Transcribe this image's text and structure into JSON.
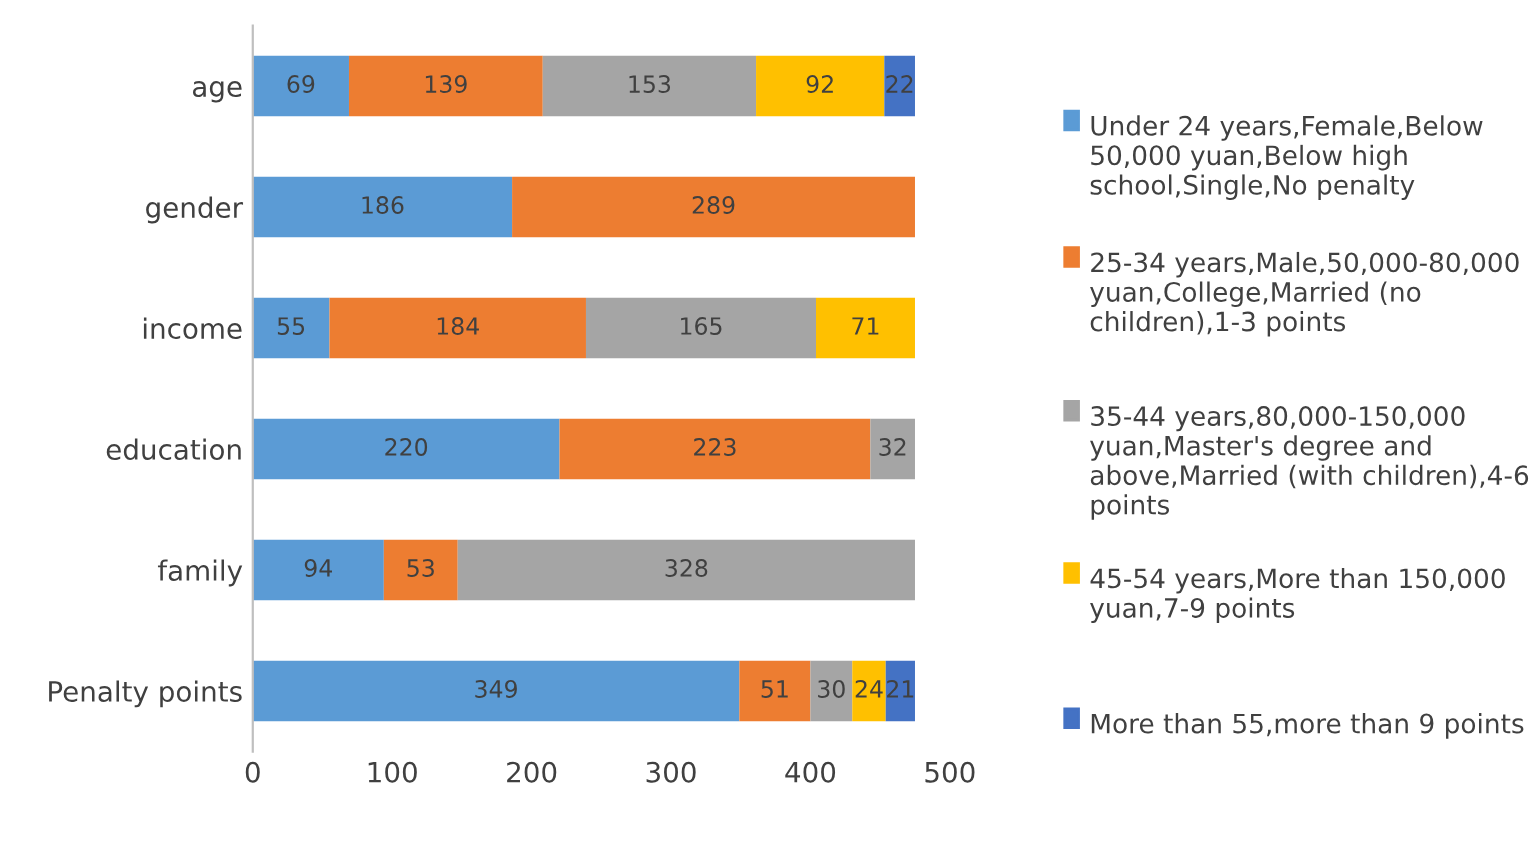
{
  "chart_data": {
    "type": "bar",
    "orientation": "horizontal",
    "stacked": true,
    "data_labels": true,
    "legend": "right",
    "grid": false,
    "categories": [
      "age",
      "gender",
      "income",
      "education",
      "family",
      "Penalty points"
    ],
    "xlim": [
      0,
      500
    ],
    "xticks": [
      0,
      100,
      200,
      300,
      400,
      500
    ],
    "series": [
      {
        "name": "Under 24 years,Female,Below 50,000 yuan,Below high school,Single,No penalty",
        "color": "#5b9bd5",
        "values": [
          69,
          186,
          55,
          220,
          94,
          349
        ]
      },
      {
        "name": "25-34 years,Male,50,000-80,000 yuan,College,Married (no children),1-3 points",
        "color": "#ed7d31",
        "values": [
          139,
          289,
          184,
          223,
          53,
          51
        ]
      },
      {
        "name": "35-44 years,80,000-150,000 yuan,Master's degree and above,Married (with children),4-6 points",
        "color": "#a5a5a5",
        "values": [
          153,
          null,
          165,
          32,
          328,
          30
        ]
      },
      {
        "name": "45-54 years,More than 150,000 yuan,7-9 points",
        "color": "#ffc000",
        "values": [
          92,
          null,
          71,
          null,
          null,
          24
        ]
      },
      {
        "name": "More than 55,more than 9 points",
        "color": "#4472c4",
        "values": [
          22,
          null,
          null,
          null,
          null,
          21
        ]
      }
    ]
  }
}
